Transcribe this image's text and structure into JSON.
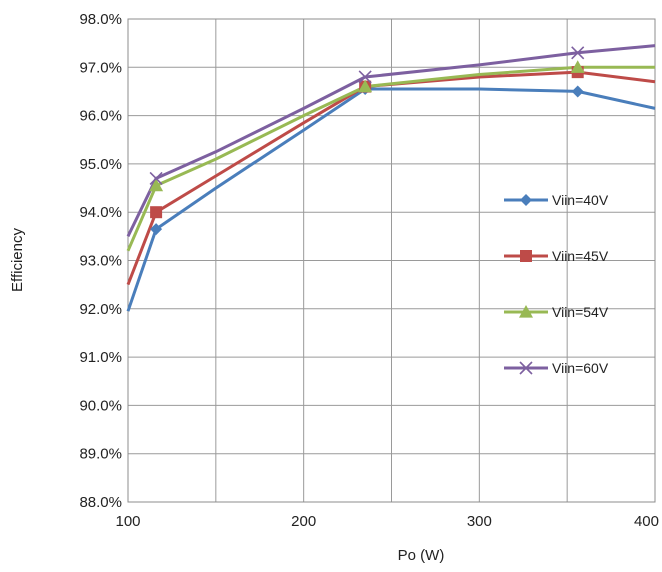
{
  "chart_data": {
    "type": "line",
    "title": "",
    "xlabel": "Po (W)",
    "ylabel": "Efficiency",
    "xlim": [
      100,
      400
    ],
    "ylim": [
      88.0,
      98.0
    ],
    "xticks": [
      100,
      200,
      300,
      400
    ],
    "yticks": [
      88.0,
      89.0,
      90.0,
      91.0,
      92.0,
      93.0,
      94.0,
      95.0,
      96.0,
      97.0,
      98.0
    ],
    "y_tick_format": "percent_1dp",
    "grid": true,
    "legend_position": "right",
    "series": [
      {
        "name": "Viin=40V",
        "color": "#4a7ebb",
        "marker": "diamond",
        "x": [
          100,
          116,
          150,
          200,
          235,
          300,
          356,
          400
        ],
        "y": [
          91.95,
          93.65,
          94.5,
          95.7,
          96.55,
          96.55,
          96.5,
          96.15
        ],
        "marker_x": [
          116,
          235,
          356
        ]
      },
      {
        "name": "Viin=45V",
        "color": "#be4b48",
        "marker": "square",
        "x": [
          100,
          116,
          150,
          200,
          235,
          300,
          356,
          400
        ],
        "y": [
          92.5,
          94.0,
          94.75,
          95.85,
          96.6,
          96.8,
          96.9,
          96.7
        ],
        "marker_x": [
          116,
          235,
          356
        ]
      },
      {
        "name": "Viin=54V",
        "color": "#98b954",
        "marker": "triangle",
        "x": [
          100,
          116,
          150,
          200,
          235,
          300,
          356,
          400
        ],
        "y": [
          93.2,
          94.55,
          95.1,
          96.0,
          96.6,
          96.85,
          97.0,
          97.0
        ],
        "marker_x": [
          116,
          235,
          356
        ]
      },
      {
        "name": "Viin=60V",
        "color": "#7d60a0",
        "marker": "x",
        "x": [
          100,
          116,
          150,
          200,
          235,
          300,
          356,
          400
        ],
        "y": [
          93.5,
          94.7,
          95.25,
          96.15,
          96.8,
          97.05,
          97.3,
          97.45
        ],
        "marker_x": [
          116,
          235,
          356
        ]
      }
    ]
  }
}
